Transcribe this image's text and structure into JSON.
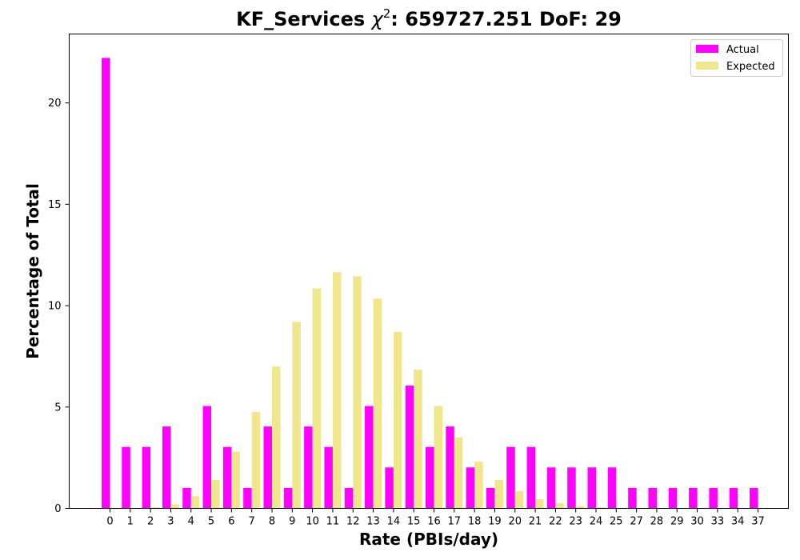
{
  "chart_data": {
    "type": "bar",
    "title_prefix": "KF_Services ",
    "title_symbol": "χ",
    "title_superscript": "2",
    "title_suffix": ": 659727.251 DoF: 29",
    "xlabel": "Rate (PBIs/day)",
    "ylabel": "Percentage of Total",
    "ylim": [
      0,
      23.4
    ],
    "yticks": [
      0,
      5,
      10,
      15,
      20
    ],
    "grid": false,
    "legend_position": "top-right",
    "categories": [
      "0",
      "1",
      "2",
      "3",
      "4",
      "5",
      "6",
      "7",
      "8",
      "9",
      "10",
      "11",
      "12",
      "13",
      "14",
      "15",
      "16",
      "17",
      "18",
      "19",
      "20",
      "21",
      "22",
      "23",
      "24",
      "25",
      "27",
      "28",
      "29",
      "30",
      "33",
      "34",
      "37"
    ],
    "series": [
      {
        "name": "Actual",
        "color": "#ff00ff",
        "values": [
          22.22,
          3.03,
          3.03,
          4.04,
          1.01,
          5.05,
          3.03,
          1.01,
          4.04,
          1.01,
          4.04,
          3.03,
          1.01,
          5.05,
          2.02,
          6.06,
          3.03,
          4.04,
          2.02,
          1.01,
          3.03,
          3.03,
          2.02,
          2.02,
          2.02,
          2.02,
          1.01,
          1.01,
          1.01,
          1.01,
          1.01,
          1.01,
          1.01
        ]
      },
      {
        "name": "Expected",
        "color": "#f0e68c",
        "values": [
          0,
          0,
          0.05,
          0.2,
          0.6,
          1.4,
          2.8,
          4.75,
          7.0,
          9.2,
          10.85,
          11.65,
          11.45,
          10.35,
          8.7,
          6.85,
          5.05,
          3.5,
          2.3,
          1.4,
          0.85,
          0.45,
          0.25,
          0.12,
          0.06,
          0.03,
          0,
          0,
          0,
          0,
          0,
          0,
          0
        ]
      }
    ]
  }
}
